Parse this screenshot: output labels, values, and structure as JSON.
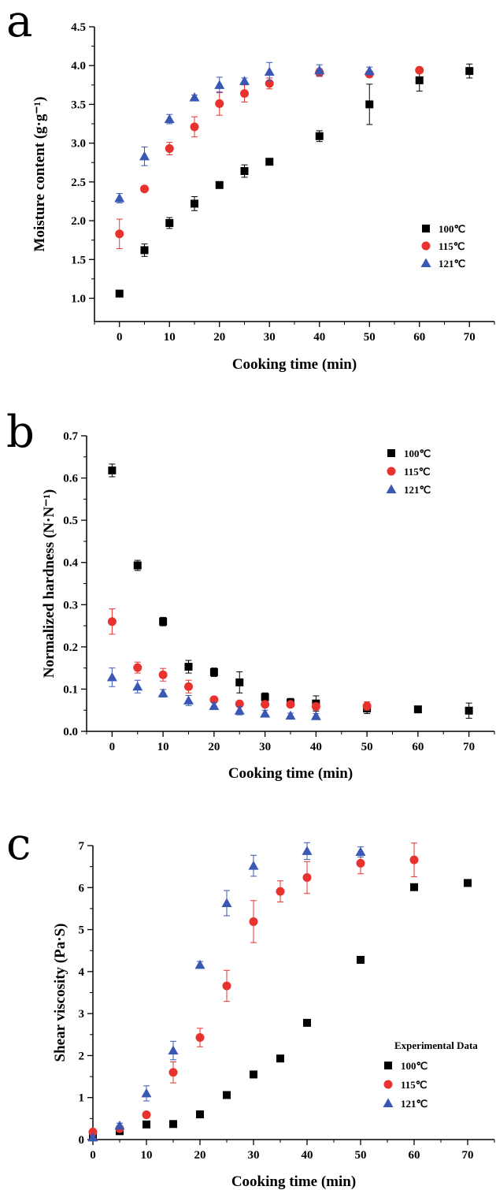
{
  "colors": {
    "s100": "#000000",
    "s115": "#e8322e",
    "s121": "#3a57b3"
  },
  "chart_data": [
    {
      "panel": "a",
      "type": "scatter",
      "xlabel": "Cooking time (min)",
      "ylabel": "Moisture content (g·g⁻¹)",
      "xlim": [
        -5,
        75
      ],
      "ylim": [
        0.7,
        4.5
      ],
      "xticks": [
        "0",
        "10",
        "20",
        "30",
        "40",
        "50",
        "60",
        "70"
      ],
      "yticks": [
        "1.0",
        "1.5",
        "2.0",
        "2.5",
        "3.0",
        "3.5",
        "4.0",
        "4.5"
      ],
      "legend_position": "right-middle",
      "series": [
        {
          "name": "100℃",
          "marker": "square",
          "x": [
            0,
            5,
            10,
            15,
            20,
            25,
            30,
            40,
            50,
            60,
            70
          ],
          "y": [
            1.06,
            1.62,
            1.97,
            2.22,
            2.46,
            2.64,
            2.76,
            3.09,
            3.5,
            3.81,
            3.93
          ],
          "err": [
            0.04,
            0.08,
            0.07,
            0.09,
            0.03,
            0.08,
            0.03,
            0.07,
            0.26,
            0.14,
            0.09
          ]
        },
        {
          "name": "115℃",
          "marker": "circle",
          "x": [
            0,
            5,
            10,
            15,
            20,
            25,
            30,
            40,
            50,
            60
          ],
          "y": [
            1.83,
            2.41,
            2.93,
            3.21,
            3.51,
            3.64,
            3.77,
            3.91,
            3.89,
            3.94
          ],
          "err": [
            0.19,
            0.02,
            0.08,
            0.13,
            0.15,
            0.11,
            0.07,
            0.05,
            0.04,
            0.03
          ]
        },
        {
          "name": "121℃",
          "marker": "triangle",
          "x": [
            0,
            5,
            10,
            15,
            20,
            25,
            30,
            40,
            50
          ],
          "y": [
            2.29,
            2.83,
            3.31,
            3.59,
            3.75,
            3.8,
            3.92,
            3.94,
            3.93
          ],
          "err": [
            0.06,
            0.12,
            0.06,
            0.03,
            0.1,
            0.04,
            0.12,
            0.07,
            0.05
          ]
        }
      ]
    },
    {
      "panel": "b",
      "type": "scatter",
      "xlabel": "Cooking time (min)",
      "ylabel": "Normalized hardness (N·N⁻¹)",
      "xlim": [
        -5,
        75
      ],
      "ylim": [
        0.0,
        0.7
      ],
      "xticks": [
        "0",
        "10",
        "20",
        "30",
        "40",
        "50",
        "60",
        "70"
      ],
      "yticks": [
        "0.0",
        "0.1",
        "0.2",
        "0.3",
        "0.4",
        "0.5",
        "0.6",
        "0.7"
      ],
      "legend_position": "top-right",
      "series": [
        {
          "name": "100℃",
          "marker": "square",
          "x": [
            0,
            5,
            10,
            15,
            20,
            25,
            30,
            35,
            40,
            50,
            60,
            70
          ],
          "y": [
            0.618,
            0.393,
            0.26,
            0.153,
            0.14,
            0.116,
            0.081,
            0.068,
            0.066,
            0.054,
            0.052,
            0.049
          ],
          "err": [
            0.015,
            0.012,
            0.01,
            0.015,
            0.01,
            0.025,
            0.01,
            0.01,
            0.018,
            0.012,
            0.004,
            0.018
          ]
        },
        {
          "name": "115℃",
          "marker": "circle",
          "x": [
            0,
            5,
            10,
            15,
            20,
            25,
            30,
            35,
            40,
            50
          ],
          "y": [
            0.26,
            0.151,
            0.134,
            0.106,
            0.075,
            0.065,
            0.064,
            0.064,
            0.059,
            0.06
          ],
          "err": [
            0.03,
            0.013,
            0.015,
            0.015,
            0.006,
            0.006,
            0.006,
            0.006,
            0.008,
            0.01
          ]
        },
        {
          "name": "121℃",
          "marker": "triangle",
          "x": [
            0,
            5,
            10,
            15,
            20,
            25,
            30,
            35,
            40
          ],
          "y": [
            0.128,
            0.106,
            0.09,
            0.073,
            0.06,
            0.049,
            0.042,
            0.037,
            0.036
          ],
          "err": [
            0.022,
            0.015,
            0.009,
            0.012,
            0.008,
            0.01,
            0.008,
            0.006,
            0.006
          ]
        }
      ]
    },
    {
      "panel": "c",
      "type": "scatter",
      "xlabel": "Cooking time (min)",
      "ylabel": "Shear viscosity (Pa·S)",
      "xlim": [
        0,
        75
      ],
      "ylim": [
        0,
        7
      ],
      "xticks": [
        "0",
        "10",
        "20",
        "30",
        "40",
        "50",
        "60",
        "70"
      ],
      "yticks": [
        "0",
        "1",
        "2",
        "3",
        "4",
        "5",
        "6",
        "7"
      ],
      "legend_title": "Experimental Data",
      "legend_position": "bottom-right",
      "series": [
        {
          "name": "100℃",
          "marker": "square",
          "x": [
            0,
            5,
            10,
            15,
            20,
            25,
            30,
            35,
            40,
            50,
            60,
            70
          ],
          "y": [
            0.1,
            0.2,
            0.36,
            0.37,
            0.6,
            1.06,
            1.55,
            1.93,
            2.78,
            4.28,
            6.01,
            6.11
          ],
          "err": [
            0,
            0,
            0,
            0,
            0,
            0,
            0,
            0,
            0,
            0,
            0,
            0
          ]
        },
        {
          "name": "115℃",
          "marker": "circle",
          "x": [
            0,
            5,
            10,
            15,
            20,
            25,
            30,
            35,
            40,
            50,
            60
          ],
          "y": [
            0.18,
            0.26,
            0.59,
            1.6,
            2.43,
            3.66,
            5.19,
            5.91,
            6.24,
            6.58,
            6.66
          ],
          "err": [
            0.03,
            0.05,
            0.05,
            0.25,
            0.22,
            0.37,
            0.5,
            0.25,
            0.38,
            0.25,
            0.4
          ]
        },
        {
          "name": "121℃",
          "marker": "triangle",
          "x": [
            0,
            5,
            10,
            15,
            20,
            25,
            30,
            40,
            50
          ],
          "y": [
            0.05,
            0.33,
            1.1,
            2.12,
            4.16,
            5.63,
            6.52,
            6.87,
            6.85
          ],
          "err": [
            0.03,
            0.06,
            0.18,
            0.22,
            0.08,
            0.3,
            0.25,
            0.2,
            0.12
          ]
        }
      ]
    }
  ]
}
